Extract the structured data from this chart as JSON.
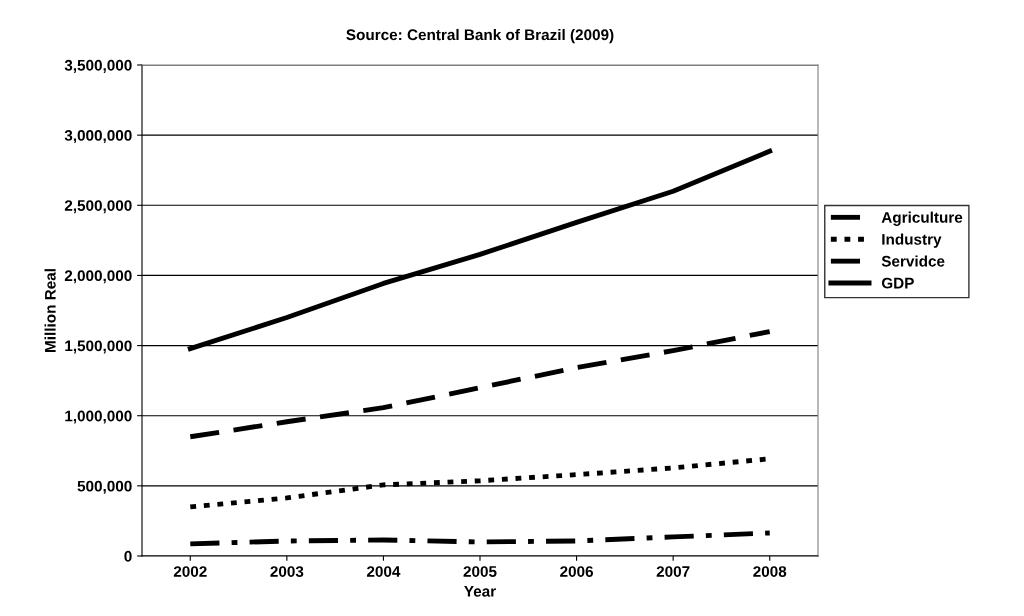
{
  "chart_data": {
    "type": "line",
    "title": "Source: Central Bank of Brazil (2009)",
    "xlabel": "Year",
    "ylabel": "Million Real",
    "categories": [
      "2002",
      "2003",
      "2004",
      "2005",
      "2006",
      "2007",
      "2008"
    ],
    "series": [
      {
        "name": "Agriculture",
        "color": "#000000",
        "line_style": "dashdot",
        "values": [
          86000,
          107000,
          114000,
          100000,
          107000,
          136000,
          164000
        ]
      },
      {
        "name": "Industry",
        "color": "#000000",
        "line_style": "dotted",
        "values": [
          350000,
          414000,
          507000,
          536000,
          580000,
          628000,
          693000
        ]
      },
      {
        "name": "Servidce",
        "color": "#000000",
        "line_style": "dashed",
        "values": [
          850000,
          957000,
          1057000,
          1200000,
          1343000,
          1464000,
          1600000
        ]
      },
      {
        "name": "GDP",
        "color": "#000000",
        "line_style": "solid",
        "values": [
          1478000,
          1700000,
          1943000,
          2150000,
          2378000,
          2600000,
          2886000
        ]
      }
    ],
    "ylim": [
      0,
      3500000
    ],
    "yticks": [
      {
        "value": 0,
        "label": "0"
      },
      {
        "value": 500000,
        "label": "500,000"
      },
      {
        "value": 1000000,
        "label": "1,000,000"
      },
      {
        "value": 1500000,
        "label": "1,500,000"
      },
      {
        "value": 2000000,
        "label": "2,000,000"
      },
      {
        "value": 2500000,
        "label": "2,500,000"
      },
      {
        "value": 3000000,
        "label": "3,000,000"
      },
      {
        "value": 3500000,
        "label": "3,500,000"
      }
    ],
    "grid": "y",
    "legend": "right",
    "marker": "none"
  }
}
